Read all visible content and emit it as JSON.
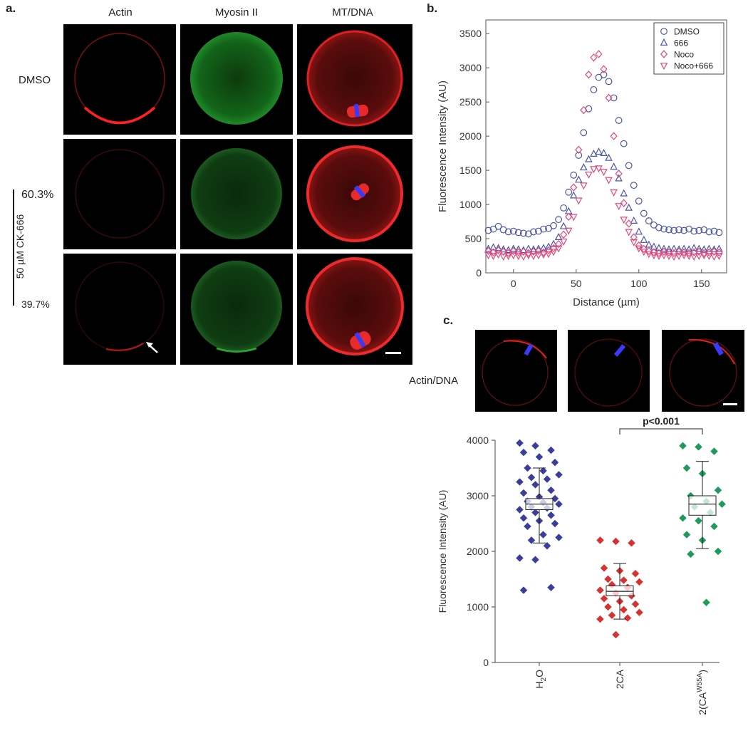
{
  "panel_a": {
    "letter": "a.",
    "columns": [
      "Actin",
      "Myosin II",
      "MT/DNA"
    ],
    "row_label_top": "DMSO",
    "group_label": "50 µM CK-666",
    "pct_top": "60.3%",
    "pct_bottom": "39.7%"
  },
  "panel_b": {
    "letter": "b."
  },
  "panel_c": {
    "letter": "c.",
    "image_label": "Actin/DNA",
    "significance": "p<0.001"
  },
  "chart_data": [
    {
      "type": "scatter",
      "title": "",
      "xlabel": "Distance (µm)",
      "ylabel": "Fluorescence Intensity (AU)",
      "xlim": [
        -22,
        170
      ],
      "ylim": [
        0,
        3700
      ],
      "xticks": [
        0,
        50,
        100,
        150
      ],
      "yticks": [
        0,
        500,
        1000,
        1500,
        2000,
        2500,
        3000,
        3500
      ],
      "grid": false,
      "legend": "top-right",
      "series": [
        {
          "name": "DMSO",
          "marker": "circle",
          "color": "#4a55a8",
          "x": [
            -20,
            -16,
            -12,
            -8,
            -4,
            0,
            4,
            8,
            12,
            16,
            20,
            24,
            28,
            32,
            36,
            40,
            44,
            48,
            52,
            56,
            60,
            64,
            68,
            72,
            76,
            80,
            84,
            88,
            92,
            96,
            100,
            104,
            108,
            112,
            116,
            120,
            124,
            128,
            132,
            136,
            140,
            144,
            148,
            152,
            156,
            160,
            164
          ],
          "y": [
            620,
            640,
            680,
            630,
            600,
            610,
            590,
            580,
            570,
            600,
            610,
            640,
            650,
            690,
            780,
            950,
            1180,
            1430,
            1720,
            2050,
            2400,
            2680,
            2860,
            2900,
            2800,
            2560,
            2230,
            1890,
            1570,
            1280,
            1050,
            870,
            760,
            700,
            660,
            640,
            630,
            620,
            630,
            620,
            640,
            610,
            620,
            630,
            600,
            610,
            590
          ]
        },
        {
          "name": "666",
          "marker": "triangle-up",
          "color": "#4a55a8",
          "x": [
            -20,
            -16,
            -12,
            -8,
            -4,
            0,
            4,
            8,
            12,
            16,
            20,
            24,
            28,
            32,
            36,
            40,
            44,
            48,
            52,
            56,
            60,
            64,
            68,
            72,
            76,
            80,
            84,
            88,
            92,
            96,
            100,
            104,
            108,
            112,
            116,
            120,
            124,
            128,
            132,
            136,
            140,
            144,
            148,
            152,
            156,
            160,
            164
          ],
          "y": [
            350,
            370,
            360,
            340,
            330,
            350,
            340,
            330,
            350,
            340,
            350,
            360,
            380,
            420,
            520,
            680,
            900,
            1130,
            1360,
            1540,
            1660,
            1740,
            1770,
            1750,
            1680,
            1550,
            1380,
            1160,
            950,
            760,
            600,
            480,
            410,
            380,
            360,
            350,
            340,
            350,
            340,
            350,
            340,
            360,
            350,
            340,
            350,
            340,
            350
          ]
        },
        {
          "name": "Noco",
          "marker": "diamond",
          "color": "#e0487a",
          "x": [
            -20,
            -16,
            -12,
            -8,
            -4,
            0,
            4,
            8,
            12,
            16,
            20,
            24,
            28,
            32,
            36,
            40,
            44,
            48,
            52,
            56,
            60,
            64,
            68,
            72,
            76,
            80,
            84,
            88,
            92,
            96,
            100,
            104,
            108,
            112,
            116,
            120,
            124,
            128,
            132,
            136,
            140,
            144,
            148,
            152,
            156,
            160,
            164
          ],
          "y": [
            320,
            300,
            330,
            310,
            290,
            320,
            300,
            310,
            290,
            310,
            320,
            300,
            330,
            360,
            420,
            560,
            820,
            1250,
            1800,
            2380,
            2900,
            3150,
            3200,
            2980,
            2560,
            2000,
            1450,
            1020,
            720,
            520,
            400,
            350,
            320,
            300,
            290,
            310,
            300,
            290,
            310,
            300,
            290,
            300,
            310,
            290,
            300,
            310,
            300
          ]
        },
        {
          "name": "Noco+666",
          "marker": "triangle-down",
          "color": "#e0487a",
          "x": [
            -20,
            -16,
            -12,
            -8,
            -4,
            0,
            4,
            8,
            12,
            16,
            20,
            24,
            28,
            32,
            36,
            40,
            44,
            48,
            52,
            56,
            60,
            64,
            68,
            72,
            76,
            80,
            84,
            88,
            92,
            96,
            100,
            104,
            108,
            112,
            116,
            120,
            124,
            128,
            132,
            136,
            140,
            144,
            148,
            152,
            156,
            160,
            164
          ],
          "y": [
            260,
            250,
            270,
            240,
            250,
            260,
            250,
            240,
            260,
            250,
            260,
            270,
            280,
            310,
            360,
            460,
            620,
            820,
            1060,
            1280,
            1440,
            1520,
            1530,
            1480,
            1360,
            1180,
            980,
            780,
            600,
            450,
            360,
            310,
            280,
            260,
            250,
            260,
            250,
            240,
            250,
            260,
            250,
            240,
            250,
            260,
            250,
            240,
            250
          ]
        }
      ]
    },
    {
      "type": "box",
      "title": "",
      "xlabel": "",
      "ylabel": "Fluorescence Intensity (AU)",
      "ylim": [
        0,
        4000
      ],
      "yticks": [
        0,
        1000,
        2000,
        3000,
        4000
      ],
      "categories": [
        "H2O",
        "2CA",
        "2(CAW55A)"
      ],
      "category_labels": [
        {
          "base": "H",
          "sub": "2",
          "tail": "O"
        },
        {
          "base": "2CA",
          "sub": "",
          "tail": ""
        },
        {
          "base": "2(CA",
          "sup": "W55A",
          "tail": ")"
        }
      ],
      "boxes": [
        {
          "whisker_low": 2150,
          "q1": 2750,
          "median": 2850,
          "q3": 2950,
          "whisker_high": 3500,
          "color": "#3b3d9a"
        },
        {
          "whisker_low": 780,
          "q1": 1200,
          "median": 1280,
          "q3": 1380,
          "whisker_high": 1780,
          "color": "#d93030"
        },
        {
          "whisker_low": 2050,
          "q1": 2650,
          "median": 2850,
          "q3": 3000,
          "whisker_high": 3620,
          "color": "#1f9a58"
        }
      ],
      "points": [
        [
          3950,
          3900,
          3820,
          3780,
          3700,
          3600,
          3500,
          3450,
          3380,
          3330,
          3300,
          3250,
          3200,
          3100,
          3050,
          2980,
          2950,
          2900,
          2880,
          2850,
          2800,
          2780,
          2750,
          2700,
          2650,
          2600,
          2550,
          2500,
          2450,
          2300,
          2250,
          2200,
          2100,
          1880,
          1850,
          1350,
          1300
        ],
        [
          2200,
          2180,
          2150,
          1700,
          1650,
          1600,
          1500,
          1480,
          1450,
          1400,
          1350,
          1300,
          1250,
          1200,
          1150,
          1100,
          1050,
          1000,
          950,
          900,
          850,
          800,
          780,
          500
        ],
        [
          3900,
          3880,
          3800,
          3500,
          3400,
          3100,
          3000,
          2900,
          2850,
          2800,
          2700,
          2600,
          2550,
          2450,
          2300,
          2200,
          2000,
          1950,
          1080
        ]
      ],
      "annotation": {
        "text": "p<0.001",
        "between": [
          "2CA",
          "2(CAW55A)"
        ]
      }
    }
  ]
}
